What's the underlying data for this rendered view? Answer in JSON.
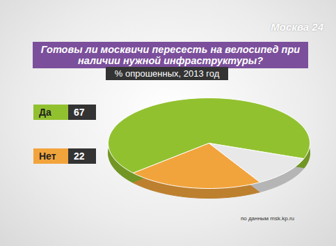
{
  "chart_data": {
    "type": "pie",
    "title": "Готовы ли москвичи пересесть на велосипед при наличии нужной инфраструктуры?",
    "subtitle": "% опрошенных, 2013 год",
    "categories": [
      "Да",
      "Нет",
      null
    ],
    "values": [
      67,
      22,
      11
    ],
    "colors": [
      "#92c130",
      "#f2a43c",
      "#e8e8e8"
    ],
    "source": "по данным msk.kp.ru",
    "logo": "Москва 24"
  }
}
